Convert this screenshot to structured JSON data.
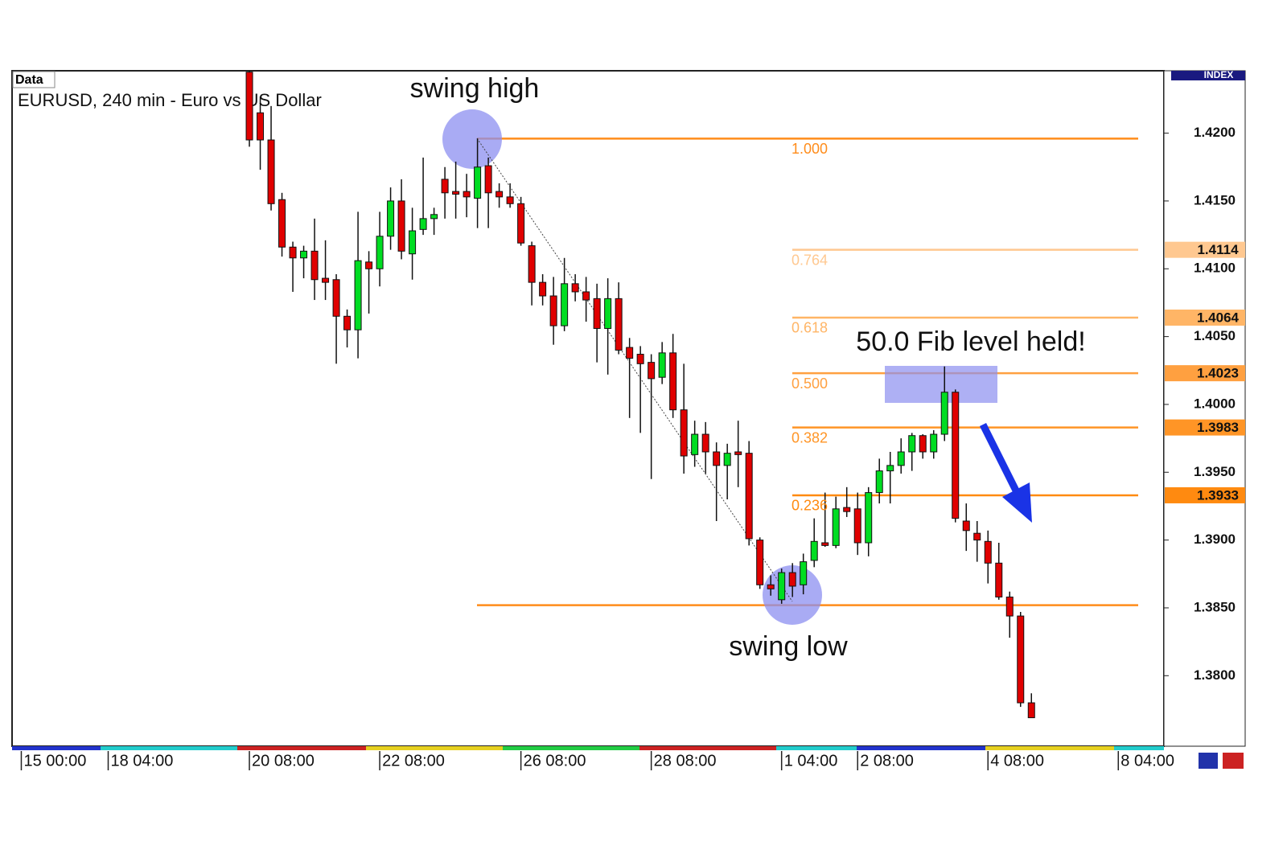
{
  "chart_data": {
    "type": "candlestick",
    "panel_label": "Data",
    "title": "EURUSD, 240 min - Euro vs US Dollar",
    "axis_badge": "INDEX",
    "up_color": "#00dd22",
    "down_color": "#e00000",
    "x": [
      22,
      23,
      24,
      25,
      26,
      27,
      28,
      29,
      30,
      31,
      32,
      33,
      34,
      35,
      36,
      37,
      38,
      39,
      40,
      41,
      42,
      43,
      44,
      45,
      46,
      47,
      48,
      49,
      50,
      51,
      52,
      53,
      54,
      55,
      56,
      57,
      58,
      59,
      60,
      61,
      62,
      63,
      64,
      65,
      66,
      67,
      68,
      69,
      70,
      71,
      72,
      73,
      74,
      75,
      76,
      77,
      78,
      79,
      80,
      81,
      82,
      83,
      84,
      85,
      86,
      87,
      88,
      89,
      90,
      91,
      92,
      93,
      94
    ],
    "open": [
      1.4245,
      1.4215,
      1.4195,
      1.4151,
      1.4116,
      1.4108,
      1.4113,
      1.4093,
      1.4092,
      1.4065,
      1.4055,
      1.4105,
      1.41,
      1.4124,
      1.415,
      1.4111,
      1.4129,
      1.4137,
      1.4166,
      1.4157,
      1.4157,
      1.4152,
      1.4176,
      1.4157,
      1.4153,
      1.4148,
      1.4117,
      1.409,
      1.408,
      1.4058,
      1.4089,
      1.4083,
      1.4078,
      1.4056,
      1.4078,
      1.4042,
      1.4037,
      1.4031,
      1.402,
      1.4038,
      1.3996,
      1.3963,
      1.3978,
      1.3965,
      1.3955,
      1.3965,
      1.3964,
      1.39,
      1.3867,
      1.3856,
      1.3876,
      1.3867,
      1.3885,
      1.3898,
      1.3896,
      1.3924,
      1.3923,
      1.3898,
      1.3935,
      1.3951,
      1.3955,
      1.3965,
      1.3977,
      1.3965,
      1.3978,
      1.4009,
      1.3914,
      1.3905,
      1.3899,
      1.3883,
      1.3858,
      1.3844,
      1.378
    ],
    "high": [
      1.425,
      1.4227,
      1.422,
      1.4156,
      1.412,
      1.4117,
      1.4137,
      1.4121,
      1.4096,
      1.407,
      1.4142,
      1.4113,
      1.4142,
      1.416,
      1.4166,
      1.4145,
      1.4182,
      1.4145,
      1.4175,
      1.4179,
      1.417,
      1.4196,
      1.4182,
      1.4163,
      1.4163,
      1.4153,
      1.412,
      1.4096,
      1.4094,
      1.4108,
      1.4096,
      1.4094,
      1.4089,
      1.4093,
      1.409,
      1.4049,
      1.4043,
      1.4037,
      1.4046,
      1.4052,
      1.403,
      1.3988,
      1.3987,
      1.3972,
      1.3971,
      1.3988,
      1.3973,
      1.3902,
      1.3874,
      1.3879,
      1.3883,
      1.389,
      1.3916,
      1.3935,
      1.3932,
      1.3939,
      1.3935,
      1.3939,
      1.396,
      1.3965,
      1.3975,
      1.3979,
      1.3978,
      1.3981,
      1.4028,
      1.4011,
      1.3927,
      1.3914,
      1.3907,
      1.3898,
      1.3862,
      1.3847,
      1.3787
    ],
    "low": [
      1.419,
      1.4173,
      1.4143,
      1.4109,
      1.4083,
      1.4093,
      1.4077,
      1.4077,
      1.403,
      1.4042,
      1.4034,
      1.4067,
      1.4087,
      1.4114,
      1.4107,
      1.4092,
      1.4125,
      1.4125,
      1.4137,
      1.4137,
      1.4138,
      1.413,
      1.413,
      1.4145,
      1.4145,
      1.4117,
      1.4073,
      1.4073,
      1.4044,
      1.4054,
      1.4076,
      1.4061,
      1.4031,
      1.4022,
      1.4037,
      1.399,
      1.3979,
      1.3945,
      1.4015,
      1.399,
      1.3949,
      1.3954,
      1.3949,
      1.3914,
      1.393,
      1.3939,
      1.3896,
      1.3864,
      1.3859,
      1.3853,
      1.3858,
      1.386,
      1.388,
      1.3895,
      1.3894,
      1.3917,
      1.3889,
      1.3888,
      1.3927,
      1.3927,
      1.3949,
      1.3951,
      1.396,
      1.396,
      1.3973,
      1.3913,
      1.3892,
      1.3884,
      1.3868,
      1.3856,
      1.3828,
      1.3777,
      1.3769
    ],
    "close": [
      1.4195,
      1.4195,
      1.4148,
      1.4116,
      1.4108,
      1.4113,
      1.4092,
      1.409,
      1.4065,
      1.4055,
      1.4106,
      1.41,
      1.4124,
      1.415,
      1.4113,
      1.4128,
      1.4137,
      1.414,
      1.4156,
      1.4155,
      1.4153,
      1.4175,
      1.4156,
      1.4153,
      1.4148,
      1.4119,
      1.409,
      1.408,
      1.4058,
      1.4089,
      1.4083,
      1.4077,
      1.4056,
      1.4078,
      1.404,
      1.4034,
      1.403,
      1.4019,
      1.4038,
      1.3996,
      1.3962,
      1.3978,
      1.3965,
      1.3955,
      1.3964,
      1.3963,
      1.3901,
      1.3867,
      1.3864,
      1.3876,
      1.3866,
      1.3884,
      1.3899,
      1.3896,
      1.3923,
      1.3921,
      1.3898,
      1.3935,
      1.3951,
      1.3955,
      1.3965,
      1.3977,
      1.3965,
      1.3978,
      1.4009,
      1.3916,
      1.3907,
      1.39,
      1.3883,
      1.3858,
      1.3844,
      1.378,
      1.3769
    ],
    "xlim": [
      0.15,
      106.2
    ],
    "xticks": [
      {
        "value": 1,
        "label": "15 00:00"
      },
      {
        "value": 9,
        "label": "18 04:00"
      },
      {
        "value": 22,
        "label": "20 08:00"
      },
      {
        "value": 34,
        "label": "22 08:00"
      },
      {
        "value": 47,
        "label": "26 08:00"
      },
      {
        "value": 59,
        "label": "28 08:00"
      },
      {
        "value": 71,
        "label": "1 04:00"
      },
      {
        "value": 78,
        "label": "2 08:00"
      },
      {
        "value": 90,
        "label": "4 08:00"
      },
      {
        "value": 102,
        "label": "8 04:00"
      }
    ],
    "ylim": [
      1.3748,
      1.4246
    ],
    "yticks": [
      {
        "value": 1.42,
        "label": "1.4200"
      },
      {
        "value": 1.415,
        "label": "1.4150"
      },
      {
        "value": 1.41,
        "label": "1.4100"
      },
      {
        "value": 1.405,
        "label": "1.4050"
      },
      {
        "value": 1.4,
        "label": "1.4000"
      },
      {
        "value": 1.395,
        "label": "1.3950"
      },
      {
        "value": 1.39,
        "label": "1.3900"
      },
      {
        "value": 1.385,
        "label": "1.3850"
      },
      {
        "value": 1.38,
        "label": "1.3800"
      }
    ],
    "fib_levels": [
      {
        "label": "1.000",
        "price": 1.4196,
        "color": "#ff8c1a",
        "axis_tag": false
      },
      {
        "label": "0.764",
        "price": 1.4114,
        "color": "#ffc890",
        "axis_tag": true
      },
      {
        "label": "0.618",
        "price": 1.4064,
        "color": "#ffb566",
        "axis_tag": true
      },
      {
        "label": "0.500",
        "price": 1.4023,
        "color": "#ffa040",
        "axis_tag": true
      },
      {
        "label": "0.382",
        "price": 1.3983,
        "color": "#ff9526",
        "axis_tag": true
      },
      {
        "label": "0.236",
        "price": 1.3933,
        "color": "#ff8a10",
        "axis_tag": true
      },
      {
        "price": 1.3852,
        "color": "#ff8c1a",
        "axis_tag": false
      }
    ],
    "annotations": {
      "swing_high": "swing high",
      "swing_low": "swing low",
      "fib_held": "50.0 Fib level held!"
    }
  }
}
